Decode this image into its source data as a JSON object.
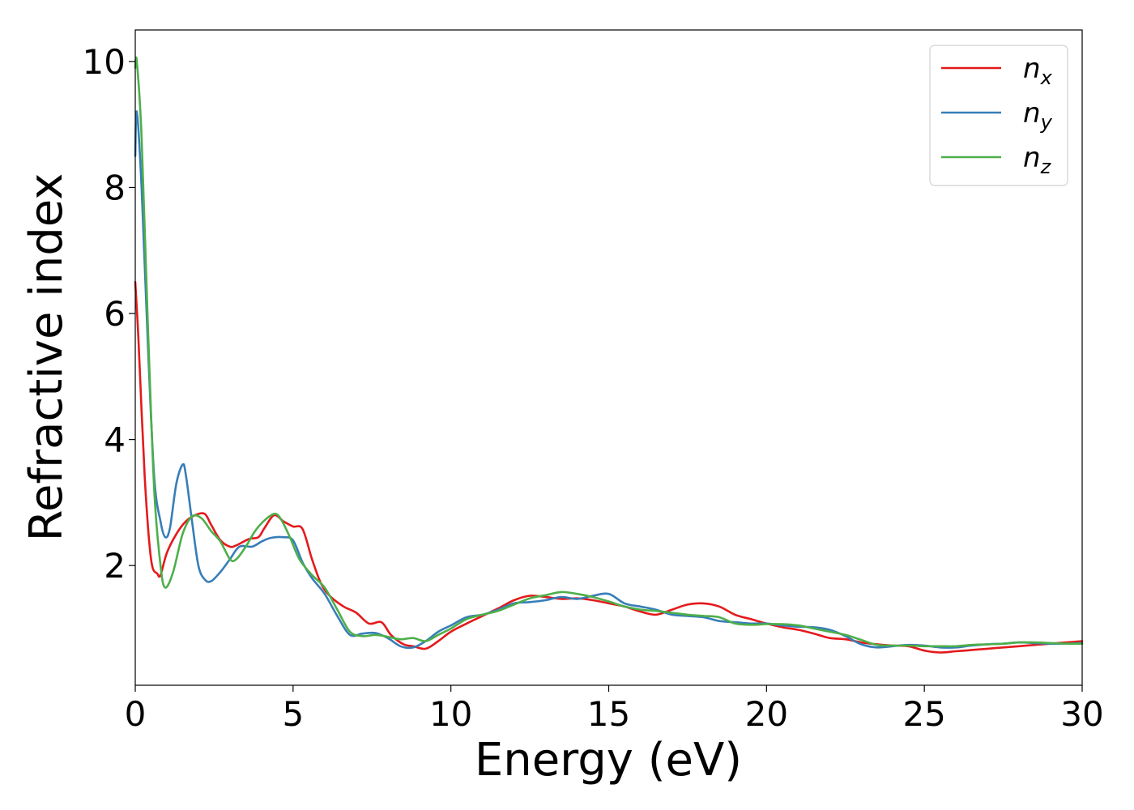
{
  "chart_data": {
    "type": "line",
    "title": "",
    "xlabel": "Energy (eV)",
    "ylabel": "Refractive index",
    "xlim": [
      0,
      30
    ],
    "ylim": [
      0.1,
      10.5
    ],
    "xticks": [
      0,
      5,
      10,
      15,
      20,
      25,
      30
    ],
    "yticks": [
      2,
      4,
      6,
      8,
      10
    ],
    "grid": false,
    "legend": {
      "position": "top-right"
    },
    "series": [
      {
        "name": "n",
        "subscript": "x",
        "color": "#e41a1c",
        "x": [
          0,
          0.1,
          0.3,
          0.5,
          0.7,
          0.8,
          1.0,
          1.3,
          1.6,
          1.9,
          2.2,
          2.4,
          2.7,
          3.0,
          3.2,
          3.6,
          3.9,
          4.1,
          4.4,
          4.7,
          5.0,
          5.3,
          5.6,
          5.9,
          6.2,
          6.6,
          7.0,
          7.4,
          7.8,
          8.1,
          8.5,
          8.8,
          9.2,
          9.6,
          10.0,
          10.5,
          11.0,
          11.5,
          12.0,
          12.5,
          13.0,
          13.5,
          14.0,
          14.5,
          15.0,
          15.5,
          16.0,
          16.5,
          17.0,
          17.5,
          18.0,
          18.5,
          19.0,
          19.5,
          20.0,
          20.5,
          21.0,
          21.5,
          22.0,
          22.5,
          23.0,
          23.5,
          24.0,
          24.5,
          25.0,
          25.5,
          26.0,
          26.5,
          27.0,
          27.5,
          28.0,
          28.5,
          29.0,
          29.5,
          30.0
        ],
        "y": [
          6.5,
          5.6,
          3.4,
          2.1,
          1.87,
          1.85,
          2.2,
          2.5,
          2.7,
          2.8,
          2.82,
          2.65,
          2.4,
          2.3,
          2.32,
          2.42,
          2.45,
          2.6,
          2.8,
          2.7,
          2.62,
          2.58,
          2.1,
          1.7,
          1.5,
          1.35,
          1.25,
          1.08,
          1.1,
          0.9,
          0.75,
          0.72,
          0.68,
          0.8,
          0.95,
          1.08,
          1.2,
          1.32,
          1.45,
          1.52,
          1.5,
          1.47,
          1.48,
          1.45,
          1.4,
          1.35,
          1.27,
          1.22,
          1.3,
          1.38,
          1.4,
          1.35,
          1.22,
          1.15,
          1.08,
          1.02,
          0.98,
          0.92,
          0.85,
          0.83,
          0.78,
          0.75,
          0.73,
          0.72,
          0.65,
          0.62,
          0.64,
          0.66,
          0.68,
          0.7,
          0.72,
          0.74,
          0.76,
          0.78,
          0.8
        ]
      },
      {
        "name": "n",
        "subscript": "y",
        "color": "#377eb8",
        "x": [
          0,
          0.05,
          0.2,
          0.4,
          0.6,
          0.8,
          0.95,
          1.1,
          1.3,
          1.5,
          1.6,
          1.8,
          2.0,
          2.2,
          2.4,
          2.7,
          3.0,
          3.3,
          3.7,
          4.0,
          4.3,
          4.7,
          5.0,
          5.3,
          5.6,
          6.0,
          6.4,
          6.8,
          7.2,
          7.6,
          8.0,
          8.4,
          8.8,
          9.2,
          9.6,
          10.0,
          10.5,
          11.0,
          11.5,
          12.0,
          12.5,
          13.0,
          13.5,
          14.0,
          14.5,
          15.0,
          15.5,
          16.0,
          16.5,
          17.0,
          17.5,
          18.0,
          18.5,
          19.0,
          19.5,
          20.0,
          20.5,
          21.0,
          21.5,
          22.0,
          22.5,
          23.0,
          23.5,
          24.0,
          24.5,
          25.0,
          25.5,
          26.0,
          26.5,
          27.0,
          27.5,
          28.0,
          28.5,
          29.0,
          29.5,
          30.0
        ],
        "y": [
          8.5,
          9.2,
          8.0,
          5.5,
          3.4,
          2.7,
          2.45,
          2.6,
          3.3,
          3.6,
          3.45,
          2.7,
          2.0,
          1.78,
          1.75,
          1.9,
          2.1,
          2.3,
          2.3,
          2.38,
          2.44,
          2.45,
          2.4,
          2.05,
          1.8,
          1.55,
          1.2,
          0.9,
          0.92,
          0.93,
          0.85,
          0.72,
          0.7,
          0.8,
          0.95,
          1.05,
          1.18,
          1.22,
          1.3,
          1.4,
          1.42,
          1.45,
          1.5,
          1.47,
          1.52,
          1.55,
          1.4,
          1.35,
          1.3,
          1.22,
          1.2,
          1.18,
          1.12,
          1.1,
          1.08,
          1.08,
          1.05,
          1.03,
          1.02,
          0.98,
          0.88,
          0.75,
          0.7,
          0.72,
          0.74,
          0.73,
          0.7,
          0.7,
          0.73,
          0.75,
          0.76,
          0.78,
          0.77,
          0.76,
          0.76,
          0.77
        ]
      },
      {
        "name": "n",
        "subscript": "z",
        "color": "#4daf4a",
        "x": [
          0,
          0.05,
          0.2,
          0.4,
          0.6,
          0.8,
          0.95,
          1.2,
          1.5,
          1.8,
          2.1,
          2.4,
          2.7,
          3.0,
          3.2,
          3.5,
          3.8,
          4.1,
          4.4,
          4.6,
          4.9,
          5.2,
          5.6,
          6.0,
          6.4,
          6.8,
          7.2,
          7.6,
          8.0,
          8.4,
          8.8,
          9.2,
          9.6,
          10.0,
          10.5,
          11.0,
          11.5,
          12.0,
          12.5,
          13.0,
          13.5,
          14.0,
          14.5,
          15.0,
          15.5,
          16.0,
          16.5,
          17.0,
          17.5,
          18.0,
          18.5,
          19.0,
          19.5,
          20.0,
          20.5,
          21.0,
          21.5,
          22.0,
          22.5,
          23.0,
          23.5,
          24.0,
          24.5,
          25.0,
          25.5,
          26.0,
          26.5,
          27.0,
          27.5,
          28.0,
          28.5,
          29.0,
          29.5,
          30.0
        ],
        "y": [
          9.9,
          10.0,
          8.8,
          5.8,
          3.2,
          2.0,
          1.65,
          1.9,
          2.5,
          2.78,
          2.75,
          2.55,
          2.38,
          2.1,
          2.1,
          2.3,
          2.55,
          2.72,
          2.82,
          2.75,
          2.45,
          2.1,
          1.85,
          1.65,
          1.3,
          0.95,
          0.88,
          0.9,
          0.87,
          0.83,
          0.85,
          0.8,
          0.9,
          1.0,
          1.15,
          1.22,
          1.28,
          1.38,
          1.48,
          1.53,
          1.58,
          1.55,
          1.5,
          1.43,
          1.35,
          1.3,
          1.28,
          1.25,
          1.22,
          1.2,
          1.18,
          1.08,
          1.06,
          1.07,
          1.07,
          1.05,
          1.0,
          0.95,
          0.9,
          0.82,
          0.74,
          0.73,
          0.73,
          0.72,
          0.72,
          0.72,
          0.74,
          0.75,
          0.76,
          0.78,
          0.78,
          0.77,
          0.76,
          0.76
        ]
      }
    ]
  }
}
